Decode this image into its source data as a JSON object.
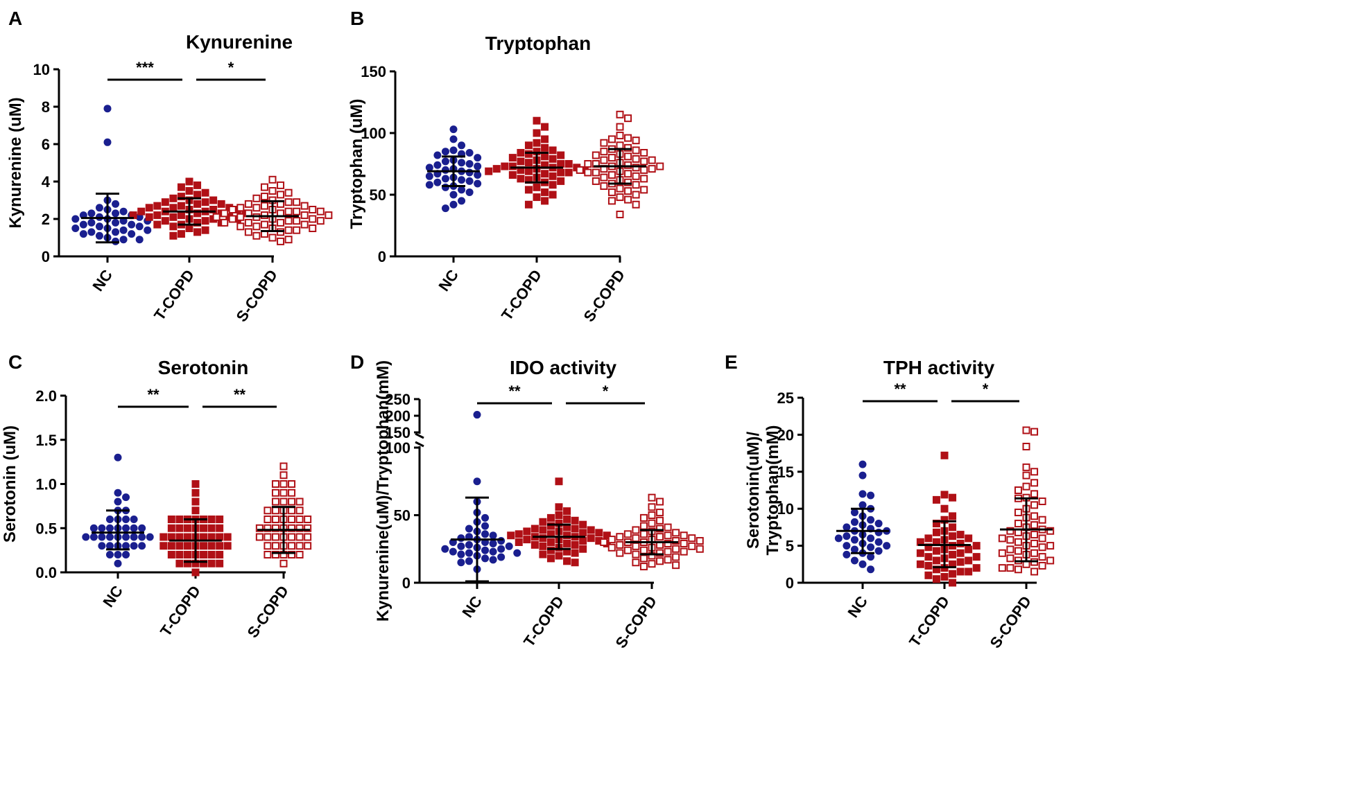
{
  "colors": {
    "NC": "#1a1f8f",
    "T-COPD": "#b01016",
    "S-COPD": "#b01016"
  },
  "chart_data": [
    {
      "panel": "A",
      "type": "scatter",
      "title": "Kynurenine",
      "ylabel": "Kynurenine (uM)",
      "ylim": [
        0,
        10
      ],
      "yticks": [
        "0",
        "2",
        "4",
        "6",
        "8",
        "10"
      ],
      "categories": [
        "NC",
        "T-COPD",
        "S-COPD"
      ],
      "summary": [
        {
          "group": "NC",
          "mean": 2.05,
          "sd_low": 0.75,
          "sd_high": 3.35
        },
        {
          "group": "T-COPD",
          "mean": 2.4,
          "sd_low": 1.7,
          "sd_high": 3.1
        },
        {
          "group": "S-COPD",
          "mean": 2.15,
          "sd_low": 1.35,
          "sd_high": 2.95
        }
      ],
      "series": [
        {
          "name": "NC",
          "marker": "filled-circle",
          "values": [
            7.9,
            6.1,
            3.0,
            2.8,
            2.6,
            2.5,
            2.4,
            2.3,
            2.3,
            2.2,
            2.2,
            2.1,
            2.1,
            2.0,
            2.0,
            1.9,
            1.9,
            1.8,
            1.8,
            1.7,
            1.7,
            1.6,
            1.6,
            1.5,
            1.5,
            1.4,
            1.4,
            1.3,
            1.3,
            1.2,
            1.2,
            1.1,
            1.0,
            0.9,
            0.9,
            0.8
          ]
        },
        {
          "name": "T-COPD",
          "marker": "filled-square",
          "values": [
            4.0,
            3.8,
            3.7,
            3.5,
            3.4,
            3.3,
            3.2,
            3.1,
            3.0,
            3.0,
            2.9,
            2.9,
            2.8,
            2.8,
            2.7,
            2.7,
            2.6,
            2.6,
            2.6,
            2.5,
            2.5,
            2.5,
            2.4,
            2.4,
            2.4,
            2.3,
            2.3,
            2.3,
            2.2,
            2.2,
            2.2,
            2.1,
            2.1,
            2.1,
            2.0,
            2.0,
            2.0,
            1.9,
            1.9,
            1.8,
            1.8,
            1.7,
            1.7,
            1.6,
            1.5,
            1.4,
            1.3,
            1.2,
            1.1
          ]
        },
        {
          "name": "S-COPD",
          "marker": "open-square",
          "values": [
            4.1,
            3.8,
            3.7,
            3.5,
            3.4,
            3.3,
            3.2,
            3.1,
            3.0,
            2.9,
            2.9,
            2.8,
            2.8,
            2.7,
            2.7,
            2.6,
            2.6,
            2.5,
            2.5,
            2.5,
            2.4,
            2.4,
            2.4,
            2.3,
            2.3,
            2.3,
            2.2,
            2.2,
            2.2,
            2.1,
            2.1,
            2.1,
            2.0,
            2.0,
            2.0,
            1.9,
            1.9,
            1.9,
            1.8,
            1.8,
            1.8,
            1.7,
            1.7,
            1.6,
            1.6,
            1.5,
            1.5,
            1.4,
            1.4,
            1.3,
            1.3,
            1.2,
            1.1,
            1.0,
            0.9,
            0.8
          ]
        }
      ],
      "significance": [
        {
          "from": "NC",
          "to": "T-COPD",
          "label": "***"
        },
        {
          "from": "T-COPD",
          "to": "S-COPD",
          "label": "*"
        }
      ]
    },
    {
      "panel": "B",
      "type": "scatter",
      "title": "Tryptophan",
      "ylabel": "Tryptophan (uM)",
      "ylim": [
        0,
        150
      ],
      "yticks": [
        "0",
        "50",
        "100",
        "150"
      ],
      "categories": [
        "NC",
        "T-COPD",
        "S-COPD"
      ],
      "summary": [
        {
          "group": "NC",
          "mean": 69,
          "sd_low": 57,
          "sd_high": 81
        },
        {
          "group": "T-COPD",
          "mean": 72,
          "sd_low": 60,
          "sd_high": 84
        },
        {
          "group": "S-COPD",
          "mean": 73,
          "sd_low": 59,
          "sd_high": 87
        }
      ],
      "series": [
        {
          "name": "NC",
          "marker": "filled-circle",
          "values": [
            103,
            95,
            90,
            86,
            85,
            84,
            83,
            82,
            80,
            78,
            77,
            76,
            75,
            74,
            73,
            72,
            71,
            70,
            69,
            68,
            67,
            66,
            65,
            64,
            63,
            62,
            61,
            60,
            59,
            58,
            57,
            56,
            54,
            52,
            50,
            45,
            42,
            39
          ]
        },
        {
          "name": "T-COPD",
          "marker": "filled-square",
          "values": [
            110,
            105,
            100,
            95,
            92,
            90,
            88,
            86,
            85,
            84,
            83,
            82,
            81,
            80,
            79,
            78,
            77,
            76,
            75,
            75,
            74,
            73,
            73,
            72,
            72,
            71,
            71,
            70,
            70,
            69,
            69,
            68,
            68,
            67,
            66,
            65,
            64,
            63,
            62,
            61,
            60,
            58,
            56,
            54,
            52,
            50,
            48,
            45,
            42
          ]
        },
        {
          "name": "S-COPD",
          "marker": "open-square",
          "values": [
            115,
            112,
            105,
            98,
            96,
            95,
            94,
            92,
            90,
            88,
            87,
            86,
            85,
            84,
            83,
            82,
            81,
            80,
            79,
            78,
            78,
            77,
            76,
            75,
            75,
            74,
            73,
            73,
            72,
            71,
            71,
            70,
            70,
            69,
            68,
            68,
            67,
            66,
            65,
            64,
            63,
            62,
            61,
            60,
            59,
            58,
            57,
            55,
            54,
            53,
            52,
            50,
            48,
            46,
            45,
            42,
            34
          ]
        }
      ],
      "significance": []
    },
    {
      "panel": "C",
      "type": "scatter",
      "title": "Serotonin",
      "ylabel": "Serotonin (uM)",
      "ylim": [
        0,
        2.0
      ],
      "yticks": [
        "0.0",
        "0.5",
        "1.0",
        "1.5",
        "2.0"
      ],
      "categories": [
        "NC",
        "T-COPD",
        "S-COPD"
      ],
      "summary": [
        {
          "group": "NC",
          "mean": 0.45,
          "sd_low": 0.26,
          "sd_high": 0.7
        },
        {
          "group": "T-COPD",
          "mean": 0.36,
          "sd_low": 0.12,
          "sd_high": 0.6
        },
        {
          "group": "S-COPD",
          "mean": 0.48,
          "sd_low": 0.22,
          "sd_high": 0.74
        }
      ],
      "series": [
        {
          "name": "NC",
          "marker": "filled-circle",
          "values": [
            1.3,
            0.9,
            0.85,
            0.8,
            0.7,
            0.7,
            0.6,
            0.6,
            0.6,
            0.6,
            0.5,
            0.5,
            0.5,
            0.5,
            0.5,
            0.5,
            0.5,
            0.4,
            0.4,
            0.4,
            0.4,
            0.4,
            0.4,
            0.4,
            0.4,
            0.4,
            0.3,
            0.3,
            0.3,
            0.3,
            0.3,
            0.3,
            0.2,
            0.2,
            0.2,
            0.1
          ]
        },
        {
          "name": "T-COPD",
          "marker": "filled-square",
          "values": [
            1.0,
            0.9,
            0.8,
            0.7,
            0.6,
            0.6,
            0.6,
            0.6,
            0.6,
            0.6,
            0.6,
            0.5,
            0.5,
            0.5,
            0.5,
            0.5,
            0.5,
            0.5,
            0.4,
            0.4,
            0.4,
            0.4,
            0.4,
            0.4,
            0.4,
            0.4,
            0.4,
            0.3,
            0.3,
            0.3,
            0.3,
            0.3,
            0.3,
            0.3,
            0.3,
            0.3,
            0.2,
            0.2,
            0.2,
            0.2,
            0.2,
            0.2,
            0.2,
            0.1,
            0.1,
            0.1,
            0.1,
            0.1,
            0.1,
            0.0
          ]
        },
        {
          "name": "S-COPD",
          "marker": "open-square",
          "values": [
            1.2,
            1.1,
            1.0,
            1.0,
            1.0,
            0.9,
            0.9,
            0.9,
            0.8,
            0.8,
            0.8,
            0.8,
            0.7,
            0.7,
            0.7,
            0.7,
            0.7,
            0.6,
            0.6,
            0.6,
            0.6,
            0.6,
            0.6,
            0.5,
            0.5,
            0.5,
            0.5,
            0.5,
            0.5,
            0.5,
            0.4,
            0.4,
            0.4,
            0.4,
            0.4,
            0.4,
            0.4,
            0.3,
            0.3,
            0.3,
            0.3,
            0.3,
            0.3,
            0.2,
            0.2,
            0.2,
            0.2,
            0.2,
            0.1
          ]
        }
      ],
      "significance": [
        {
          "from": "NC",
          "to": "T-COPD",
          "label": "**"
        },
        {
          "from": "T-COPD",
          "to": "S-COPD",
          "label": "**"
        }
      ]
    },
    {
      "panel": "D",
      "type": "scatter",
      "title": "IDO activity",
      "ylabel": "Kynurenine(uM)/Tryptophan(mM)",
      "ylim": [
        0,
        250
      ],
      "axis_break": {
        "lower": [
          0,
          100
        ],
        "upper": [
          150,
          250
        ]
      },
      "yticks": [
        "0",
        "50",
        "100",
        "150",
        "200",
        "250"
      ],
      "categories": [
        "NC",
        "T-COPD",
        "S-COPD"
      ],
      "summary": [
        {
          "group": "NC",
          "mean": 32,
          "sd_low": 1,
          "sd_high": 63
        },
        {
          "group": "T-COPD",
          "mean": 34,
          "sd_low": 25,
          "sd_high": 43
        },
        {
          "group": "S-COPD",
          "mean": 30,
          "sd_low": 21,
          "sd_high": 39
        }
      ],
      "series": [
        {
          "name": "NC",
          "marker": "filled-circle",
          "values": [
            203,
            75,
            60,
            52,
            48,
            45,
            42,
            40,
            38,
            36,
            35,
            34,
            33,
            32,
            31,
            30,
            30,
            29,
            28,
            27,
            27,
            26,
            25,
            25,
            24,
            23,
            23,
            22,
            22,
            21,
            20,
            19,
            18,
            17,
            16,
            15,
            10
          ]
        },
        {
          "name": "T-COPD",
          "marker": "filled-square",
          "values": [
            75,
            56,
            53,
            50,
            48,
            47,
            46,
            45,
            44,
            43,
            42,
            41,
            40,
            40,
            39,
            39,
            38,
            38,
            37,
            37,
            36,
            36,
            35,
            35,
            35,
            34,
            34,
            33,
            33,
            32,
            32,
            31,
            31,
            30,
            30,
            29,
            29,
            28,
            28,
            27,
            26,
            25,
            24,
            23,
            22,
            21,
            20,
            18,
            16,
            15
          ]
        },
        {
          "name": "S-COPD",
          "marker": "open-square",
          "values": [
            63,
            60,
            56,
            52,
            50,
            48,
            46,
            44,
            42,
            41,
            40,
            39,
            38,
            37,
            36,
            36,
            35,
            35,
            34,
            34,
            33,
            33,
            32,
            32,
            31,
            31,
            30,
            30,
            30,
            29,
            29,
            28,
            28,
            27,
            27,
            26,
            26,
            25,
            25,
            24,
            24,
            23,
            23,
            22,
            22,
            21,
            20,
            19,
            18,
            17,
            16,
            15,
            14,
            13,
            12
          ]
        }
      ],
      "significance": [
        {
          "from": "NC",
          "to": "T-COPD",
          "label": "**"
        },
        {
          "from": "T-COPD",
          "to": "S-COPD",
          "label": "*"
        }
      ]
    },
    {
      "panel": "E",
      "type": "scatter",
      "title": "TPH activity",
      "ylabel": "Serotonin(uM)/\nTryptophan(mM)",
      "ylim": [
        0,
        25
      ],
      "yticks": [
        "0",
        "5",
        "10",
        "15",
        "20",
        "25"
      ],
      "categories": [
        "NC",
        "T-COPD",
        "S-COPD"
      ],
      "summary": [
        {
          "group": "NC",
          "mean": 7.0,
          "sd_low": 4.0,
          "sd_high": 10.0
        },
        {
          "group": "T-COPD",
          "mean": 5.1,
          "sd_low": 2.1,
          "sd_high": 8.3
        },
        {
          "group": "S-COPD",
          "mean": 7.2,
          "sd_low": 2.9,
          "sd_high": 11.4
        }
      ],
      "series": [
        {
          "name": "NC",
          "marker": "filled-circle",
          "values": [
            16.0,
            14.5,
            12.0,
            11.8,
            10.5,
            10.0,
            9.5,
            9.0,
            8.5,
            8.2,
            8.0,
            7.8,
            7.5,
            7.3,
            7.0,
            7.0,
            6.8,
            6.5,
            6.3,
            6.0,
            6.0,
            5.8,
            5.5,
            5.3,
            5.0,
            5.0,
            4.8,
            4.5,
            4.3,
            4.0,
            3.8,
            3.5,
            3.0,
            2.5,
            1.8
          ]
        },
        {
          "name": "T-COPD",
          "marker": "filled-square",
          "values": [
            17.2,
            11.9,
            11.5,
            11.2,
            10.0,
            9.0,
            8.5,
            8.0,
            7.5,
            7.0,
            6.8,
            6.5,
            6.3,
            6.0,
            6.0,
            5.8,
            5.5,
            5.5,
            5.3,
            5.0,
            5.0,
            4.8,
            4.5,
            4.5,
            4.3,
            4.0,
            4.0,
            3.8,
            3.5,
            3.5,
            3.3,
            3.0,
            3.0,
            2.8,
            2.5,
            2.5,
            2.3,
            2.0,
            2.0,
            1.8,
            1.5,
            1.5,
            1.2,
            1.0,
            0.8,
            0.5,
            0.0
          ]
        },
        {
          "name": "S-COPD",
          "marker": "open-square",
          "values": [
            20.6,
            20.4,
            18.4,
            15.6,
            15.0,
            14.5,
            13.5,
            13.0,
            12.5,
            12.0,
            11.5,
            11.4,
            11.0,
            10.5,
            10.0,
            9.5,
            9.0,
            8.8,
            8.5,
            8.0,
            7.8,
            7.5,
            7.2,
            7.0,
            7.0,
            6.8,
            6.5,
            6.3,
            6.0,
            6.0,
            5.8,
            5.5,
            5.3,
            5.0,
            5.0,
            4.8,
            4.5,
            4.3,
            4.0,
            4.0,
            3.8,
            3.5,
            3.3,
            3.0,
            3.0,
            2.8,
            2.5,
            2.3,
            2.0,
            2.0,
            1.8,
            1.5
          ]
        }
      ],
      "significance": [
        {
          "from": "NC",
          "to": "T-COPD",
          "label": "**"
        },
        {
          "from": "T-COPD",
          "to": "S-COPD",
          "label": "*"
        }
      ]
    }
  ]
}
